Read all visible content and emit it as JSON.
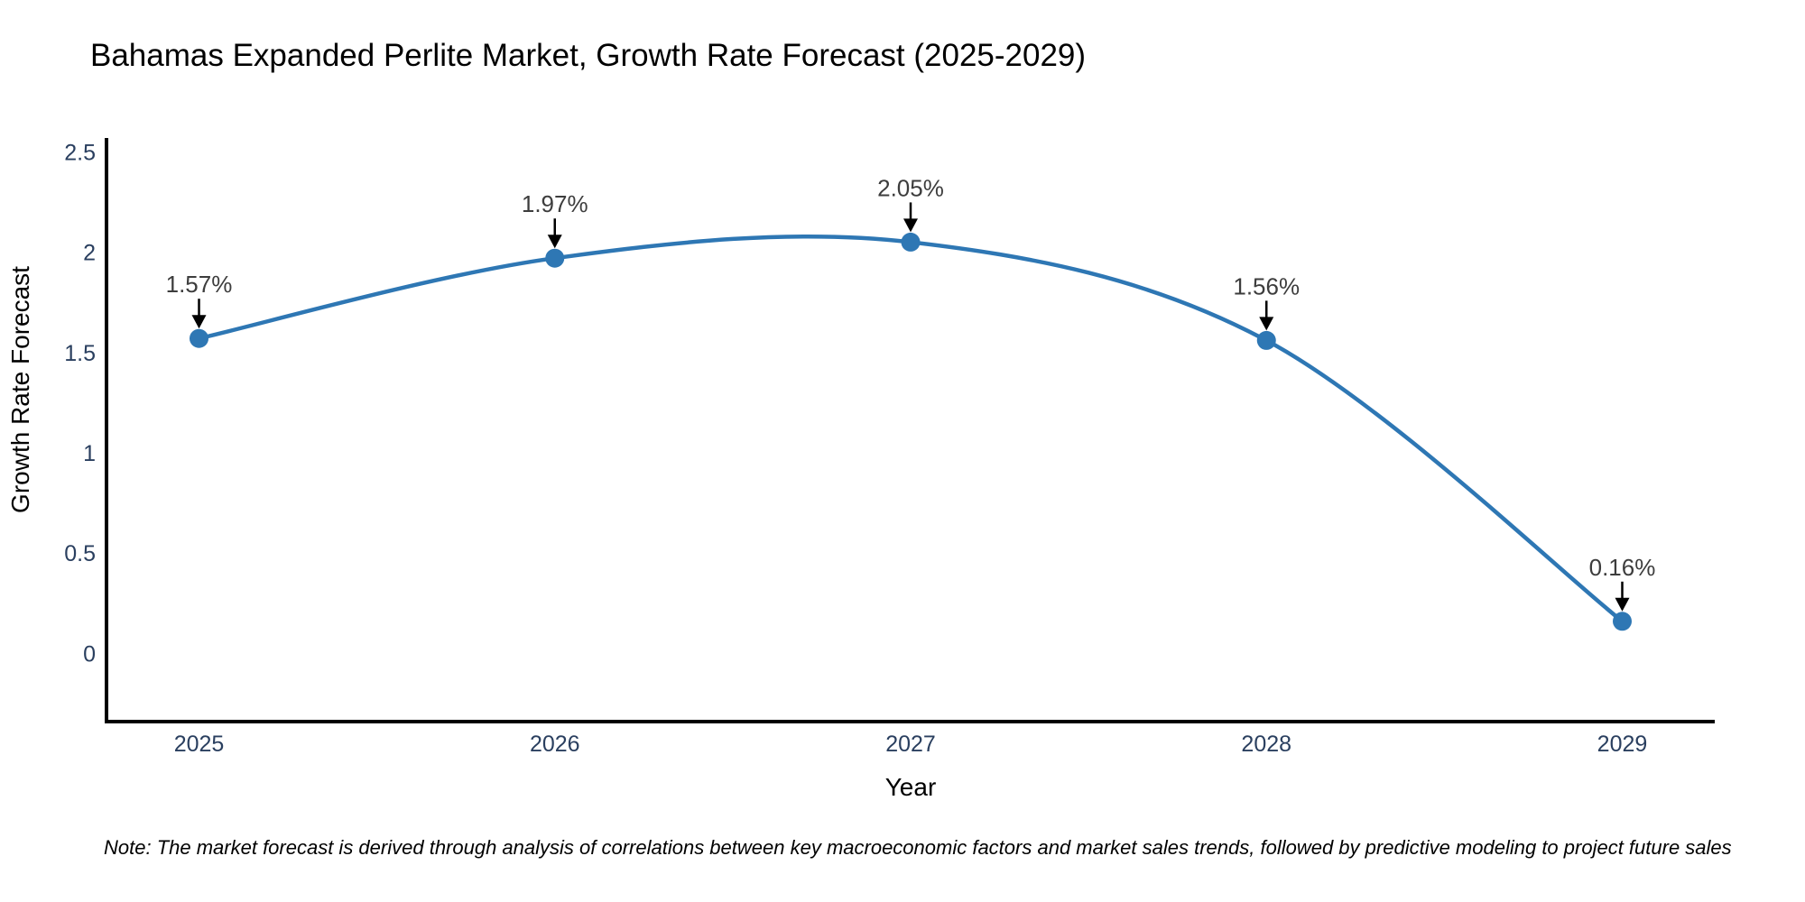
{
  "chart_data": {
    "type": "line",
    "line_shape": "spline",
    "title": "Bahamas Expanded Perlite Market, Growth Rate Forecast (2025-2029)",
    "xlabel": "Year",
    "ylabel": "Growth Rate Forecast",
    "x": [
      2025,
      2026,
      2027,
      2028,
      2029
    ],
    "x_tick_labels": [
      "2025",
      "2026",
      "2027",
      "2028",
      "2029"
    ],
    "values": [
      1.57,
      1.97,
      2.05,
      1.56,
      0.16
    ],
    "point_labels": [
      "1.57%",
      "1.97%",
      "2.05%",
      "1.56%",
      "0.16%"
    ],
    "ytick_values": [
      0,
      0.5,
      1,
      1.5,
      2,
      2.5
    ],
    "ytick_labels": [
      "0",
      "0.5",
      "1",
      "1.5",
      "2",
      "2.5"
    ],
    "ylim": [
      -0.34,
      2.56
    ],
    "xlim": [
      2024.74,
      2029.26
    ],
    "grid": false,
    "legend": "none",
    "note": "Note: The market forecast is derived through analysis of correlations between key macroeconomic factors and market sales trends, followed by predictive modeling to project future sales",
    "colors": {
      "line": "#2e77b4",
      "marker": "#2e77b4",
      "heading_text": "#2a3f5f",
      "tick_text": "#2a3f5f",
      "annotation_text": "#3d3d3d",
      "arrow": "#000000",
      "axis_line": "#000000",
      "note_text": "#222222",
      "background": "#ffffff"
    }
  }
}
